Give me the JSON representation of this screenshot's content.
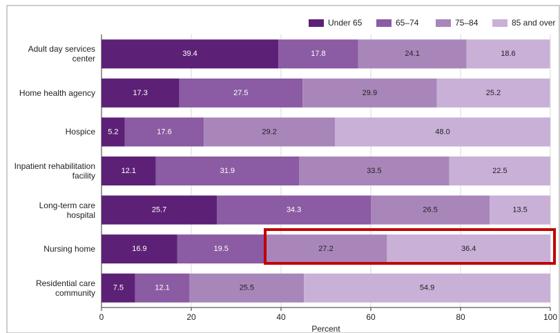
{
  "chart_data": {
    "type": "stacked-bar-horizontal",
    "x_label": "Percent",
    "categories": [
      "Adult day services center",
      "Home health agency",
      "Hospice",
      "Inpatient rehabilitation facility",
      "Long-term care hospital",
      "Nursing home",
      "Residential care community"
    ],
    "series": [
      {
        "name": "Under 65",
        "color": "#5c2176",
        "values": [
          39.4,
          17.3,
          5.2,
          12.1,
          25.7,
          16.9,
          7.5
        ],
        "value_labels": [
          "39.4",
          "17.3",
          "5.2",
          "12.1",
          "25.7",
          "16.9",
          "7.5"
        ]
      },
      {
        "name": "65–74",
        "color": "#8b5ba3",
        "values": [
          17.8,
          27.5,
          17.6,
          31.9,
          34.3,
          19.5,
          12.1
        ],
        "value_labels": [
          "17.8",
          "27.5",
          "17.6",
          "31.9",
          "34.3",
          "19.5",
          "12.1"
        ]
      },
      {
        "name": "75–84",
        "color": "#a886ba",
        "values": [
          24.1,
          29.9,
          29.2,
          33.5,
          26.5,
          27.2,
          25.5
        ],
        "value_labels": [
          "24.1",
          "29.9",
          "29.2",
          "33.5",
          "26.5",
          "27.2",
          "25.5"
        ]
      },
      {
        "name": "85 and over",
        "color": "#c9b0d7",
        "values": [
          18.6,
          25.2,
          48.0,
          22.5,
          13.5,
          36.4,
          54.9
        ],
        "value_labels": [
          "18.6",
          "25.2",
          "48.0",
          "22.5",
          "13.5",
          "36.4",
          "54.9"
        ]
      }
    ],
    "xlim": [
      0,
      100
    ],
    "xticks": [
      0,
      20,
      40,
      60,
      80,
      100
    ],
    "grid": true,
    "legend": "top-right"
  }
}
